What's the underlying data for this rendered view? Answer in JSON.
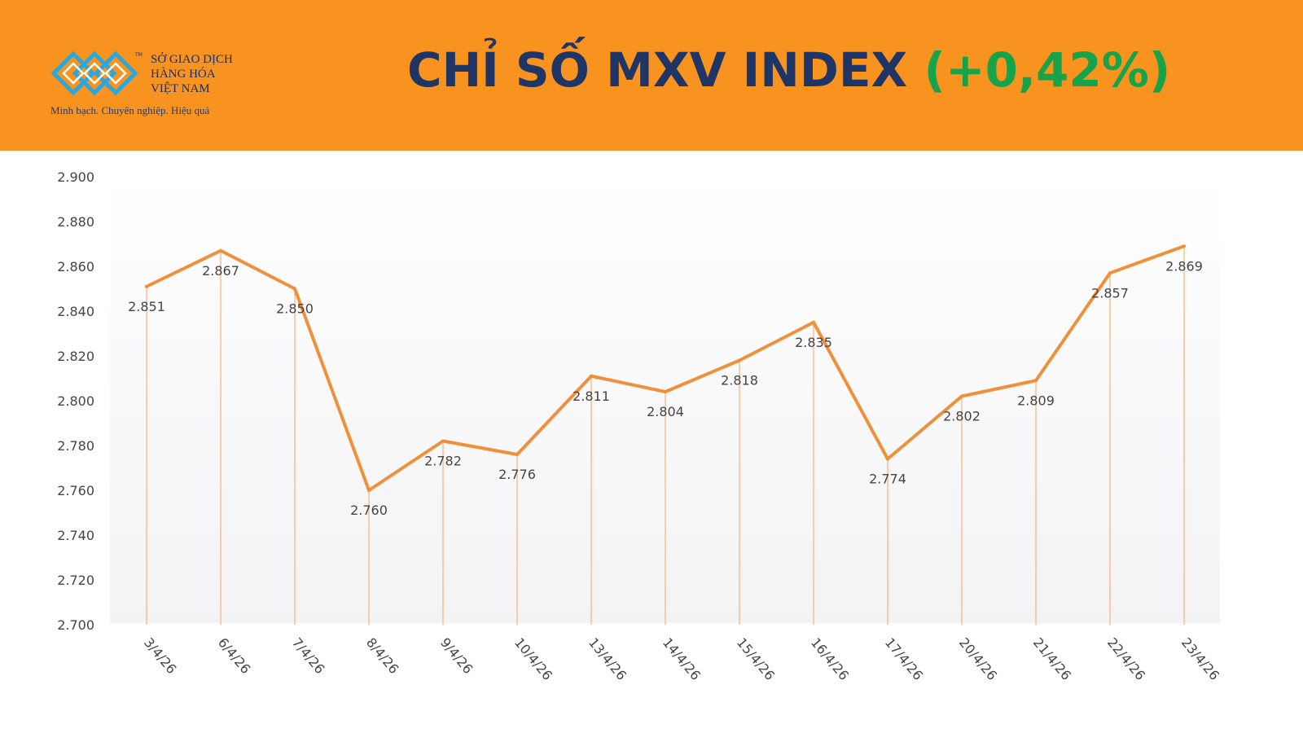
{
  "logo": {
    "line1": "SỞ GIAO DỊCH",
    "line2": "HÀNG HÓA",
    "line3": "VIỆT NAM",
    "tm": "TM",
    "slogan": "Minh bạch. Chuyên nghiệp. Hiệu quả"
  },
  "header": {
    "title": "CHỈ SỐ MXV INDEX",
    "change": "(+0,42%)"
  },
  "colors": {
    "header_bg": "#f7931e",
    "title_text": "#1f3566",
    "change_text": "#17a34a",
    "line": "#f0903a",
    "drop_lines": "#f5b27a"
  },
  "chart_data": {
    "type": "line",
    "categories": [
      "3/4/26",
      "6/4/26",
      "7/4/26",
      "8/4/26",
      "9/4/26",
      "10/4/26",
      "13/4/26",
      "14/4/26",
      "15/4/26",
      "16/4/26",
      "17/4/26",
      "20/4/26",
      "21/4/26",
      "22/4/26",
      "23/4/26"
    ],
    "values": [
      2851,
      2867,
      2850,
      2760,
      2782,
      2776,
      2811,
      2804,
      2818,
      2835,
      2774,
      2802,
      2809,
      2857,
      2869
    ],
    "value_labels": [
      "2.851",
      "2.867",
      "2.850",
      "2.760",
      "2.782",
      "2.776",
      "2.811",
      "2.804",
      "2.818",
      "2.835",
      "2.774",
      "2.802",
      "2.809",
      "2.857",
      "2.869"
    ],
    "yticks": [
      2700,
      2720,
      2740,
      2760,
      2780,
      2800,
      2820,
      2840,
      2860,
      2880,
      2900
    ],
    "ytick_labels": [
      "2.700",
      "2.720",
      "2.740",
      "2.760",
      "2.780",
      "2.800",
      "2.820",
      "2.840",
      "2.860",
      "2.880",
      "2.900"
    ],
    "ylim": [
      2700,
      2900
    ],
    "drop_lines": true,
    "grid": false
  }
}
